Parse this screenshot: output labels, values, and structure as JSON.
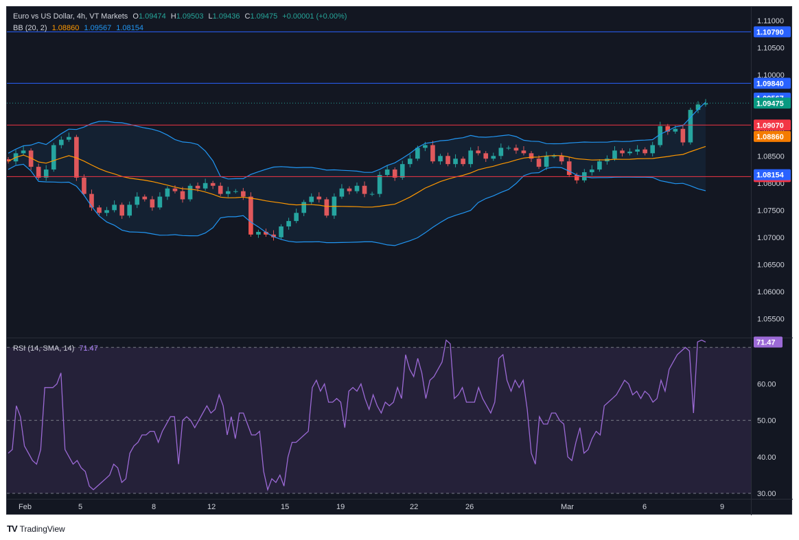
{
  "header": {
    "symbol": "Euro vs US Dollar, 4h, VT Markets",
    "o_label": "O",
    "o": "1.09474",
    "h_label": "H",
    "h": "1.09503",
    "l_label": "L",
    "l": "1.09436",
    "c_label": "C",
    "c": "1.09475",
    "change": "+0.00001 (+0.00%)",
    "bb_label": "BB (20, 2)",
    "bb_mid": "1.08860",
    "bb_upper": "1.09567",
    "bb_lower": "1.08154",
    "rsi_label": "RSI (14, SMA, 14)",
    "rsi_value": "71.47"
  },
  "branding": {
    "logo_text": "TV",
    "name": "TradingView"
  },
  "colors": {
    "background": "#131722",
    "grid": "#2a2e39",
    "text": "#d1d4dc",
    "up": "#26a69a",
    "down": "#ef5350",
    "bb_band": "#2196f3",
    "bb_basis": "#ff9800",
    "hline_blue": "#2962ff",
    "hline_red": "#f23645",
    "rsi": "#9c6ad6",
    "rsi_fill": "#2a2440"
  },
  "chart_data": [
    {
      "type": "candlestick",
      "title": "Euro vs US Dollar, 4h, VT Markets",
      "ylim": [
        1.0515,
        1.1125
      ],
      "y_ticks": [
        "1.11000",
        "1.10500",
        "1.10000",
        "1.09500",
        "1.09000",
        "1.08500",
        "1.08000",
        "1.07500",
        "1.07000",
        "1.06500",
        "1.06000",
        "1.05500"
      ],
      "x_ticks": [
        "Feb",
        "5",
        "8",
        "12",
        "15",
        "19",
        "22",
        "26",
        "Mar",
        "6",
        "9"
      ],
      "horizontal_levels": [
        {
          "value": 1.1079,
          "label": "1.10790",
          "color": "#2962ff"
        },
        {
          "value": 1.0984,
          "label": "1.09840",
          "color": "#2962ff"
        },
        {
          "value": 1.0907,
          "label": "1.09070",
          "color": "#f23645"
        },
        {
          "value": 1.0812,
          "label": "1.08120",
          "color": "#f23645"
        }
      ],
      "price_badges": [
        {
          "value": 1.09567,
          "label": "1.09567",
          "color": "#2962ff"
        },
        {
          "value": 1.09475,
          "label": "1.09475",
          "color": "#089981"
        },
        {
          "value": 1.0886,
          "label": "1.08860",
          "color": "#f57c00"
        },
        {
          "value": 1.08154,
          "label": "1.08154",
          "color": "#2962ff"
        }
      ],
      "close_path": [
        1.084,
        1.0855,
        1.086,
        1.083,
        1.081,
        1.0825,
        1.087,
        1.088,
        1.0885,
        1.081,
        1.078,
        1.0755,
        1.0745,
        1.075,
        1.076,
        1.074,
        1.076,
        1.0775,
        1.077,
        1.0755,
        1.0775,
        1.079,
        1.0785,
        1.077,
        1.0795,
        1.079,
        1.08,
        1.0795,
        1.078,
        1.0785,
        1.0785,
        1.0775,
        1.0705,
        1.071,
        1.0705,
        1.07,
        1.072,
        1.073,
        1.0745,
        1.0765,
        1.0775,
        1.077,
        1.074,
        1.0775,
        1.079,
        1.0785,
        1.0795,
        1.078,
        1.078,
        1.0815,
        1.0825,
        1.081,
        1.0835,
        1.0845,
        1.0865,
        1.087,
        1.084,
        1.085,
        1.0835,
        1.0845,
        1.0835,
        1.086,
        1.0855,
        1.0845,
        1.085,
        1.0865,
        1.0865,
        1.086,
        1.0855,
        1.0845,
        1.083,
        1.085,
        1.085,
        1.084,
        1.0815,
        1.0805,
        1.082,
        1.0825,
        1.084,
        1.0845,
        1.086,
        1.0855,
        1.0858,
        1.0862,
        1.0855,
        1.087,
        1.0905,
        1.0895,
        1.09,
        1.0875,
        1.0935,
        1.0945,
        1.0947
      ]
    },
    {
      "type": "line",
      "title": "RSI (14, SMA, 14)",
      "ylim": [
        28.5,
        72.5
      ],
      "y_ticks": [
        "60.00",
        "50.00",
        "40.00",
        "30.00"
      ],
      "reference_lines": [
        70,
        50,
        30
      ],
      "last_value": 71.47,
      "values": [
        41,
        42,
        54,
        51,
        43,
        41,
        39,
        38,
        42,
        59,
        59,
        59,
        60,
        63,
        42,
        40,
        38,
        39,
        37,
        36,
        32,
        31,
        32,
        33,
        34,
        35,
        38,
        37,
        33,
        34,
        41,
        43,
        44,
        46,
        46,
        47,
        47,
        44,
        47,
        49,
        51,
        51,
        38,
        50,
        51,
        50,
        48,
        50,
        52,
        54,
        52,
        53,
        57,
        54,
        46,
        51,
        45,
        52,
        52,
        49,
        46,
        46,
        47,
        36,
        31,
        34,
        33,
        35,
        32,
        40,
        44,
        44,
        45,
        46,
        47,
        59,
        61,
        58,
        60,
        55,
        55,
        56,
        55,
        48,
        58,
        59,
        58,
        60,
        56,
        53,
        57,
        54,
        52,
        55,
        54,
        55,
        59,
        56,
        68,
        64,
        62,
        67,
        63,
        56,
        61,
        62,
        64,
        66,
        72,
        71,
        56,
        57,
        59,
        55,
        55,
        55,
        59,
        56,
        54,
        52,
        55,
        67,
        68,
        61,
        58,
        61,
        59,
        61,
        53,
        41,
        38,
        51,
        49,
        49,
        52,
        52,
        50,
        49,
        40,
        39,
        44,
        48,
        41,
        42,
        45,
        47,
        46,
        54,
        55,
        56,
        57,
        59,
        61,
        60,
        57,
        58,
        56,
        58,
        57,
        55,
        56,
        61,
        58,
        64,
        66,
        68,
        69,
        70,
        69,
        52,
        71.5,
        72,
        71.47
      ]
    }
  ]
}
